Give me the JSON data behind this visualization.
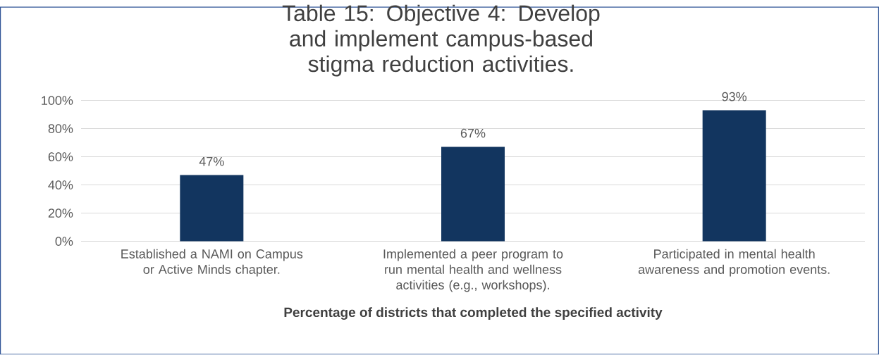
{
  "chart_data": {
    "type": "bar",
    "title": "Table 15: Objective 4: Develop and implement campus-based stigma reduction activities.",
    "xlabel": "Percentage of districts that completed the specified activity",
    "categories": [
      "Established a NAMI on Campus or Active Minds chapter.",
      "Implemented a peer program to run mental health and wellness activities (e.g., workshops).",
      "Participated in mental health awareness and promotion events."
    ],
    "values": [
      47,
      67,
      93
    ],
    "value_labels": [
      "47%",
      "67%",
      "93%"
    ],
    "color": "#12355f",
    "ylim": [
      0,
      100
    ],
    "yticks": [
      {
        "value": 0,
        "label": "0%"
      },
      {
        "value": 20,
        "label": "20%"
      },
      {
        "value": 40,
        "label": "40%"
      },
      {
        "value": 60,
        "label": "60%"
      },
      {
        "value": 80,
        "label": "80%"
      },
      {
        "value": 100,
        "label": "100%"
      }
    ],
    "grid": "y"
  }
}
